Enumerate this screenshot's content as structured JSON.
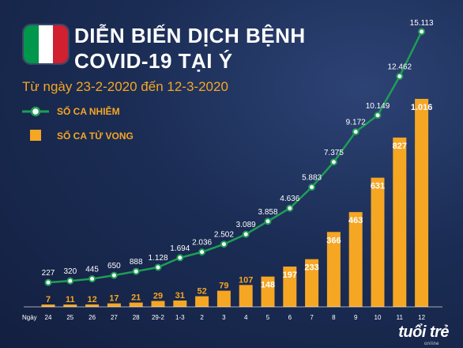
{
  "header": {
    "title_line1": "DIỄN BIẾN DỊCH BỆNH",
    "title_line2": "COVID-19 TẠI Ý",
    "subtitle": "Từ ngày 23-2-2020 đến 12-3-2020"
  },
  "flag": {
    "green": "#00964b",
    "white": "#ffffff",
    "red": "#d1202f"
  },
  "legend": {
    "infections": "SỐ CA NHIỄM",
    "deaths": "SỐ CA TỬ VONG"
  },
  "colors": {
    "line": "#1e9e55",
    "bar": "#f5a623",
    "infection_label": "#ffffff",
    "death_label": "#f5a623",
    "tick": "#ffffff"
  },
  "logo": {
    "main": "tuổi trẻ",
    "sub": "online"
  },
  "chart_data": {
    "type": "bar+line",
    "x_axis_title": "Ngày",
    "categories": [
      "24",
      "25",
      "26",
      "27",
      "28",
      "29-2",
      "1-3",
      "2",
      "3",
      "4",
      "5",
      "6",
      "7",
      "8",
      "9",
      "10",
      "11",
      "12"
    ],
    "series": [
      {
        "name": "SỐ CA NHIỄM",
        "type": "line",
        "values": [
          227,
          320,
          445,
          650,
          888,
          1128,
          1694,
          2036,
          2502,
          3089,
          3858,
          4636,
          5883,
          7375,
          9172,
          10149,
          12462,
          15113
        ],
        "labels": [
          "227",
          "320",
          "445",
          "650",
          "888",
          "1.128",
          "1.694",
          "2.036",
          "2.502",
          "3.089",
          "3.858",
          "4.636",
          "5.883",
          "7.375",
          "9.172",
          "10.149",
          "12.462",
          "15.113"
        ]
      },
      {
        "name": "SỐ CA TỬ VONG",
        "type": "bar",
        "values": [
          7,
          11,
          12,
          17,
          21,
          29,
          31,
          52,
          79,
          107,
          148,
          197,
          233,
          366,
          463,
          631,
          827,
          1016
        ],
        "labels": [
          "7",
          "11",
          "12",
          "17",
          "21",
          "29",
          "31",
          "52",
          "79",
          "107",
          "148",
          "197",
          "233",
          "366",
          "463",
          "631",
          "827",
          "1.016"
        ]
      }
    ],
    "grid": false
  }
}
